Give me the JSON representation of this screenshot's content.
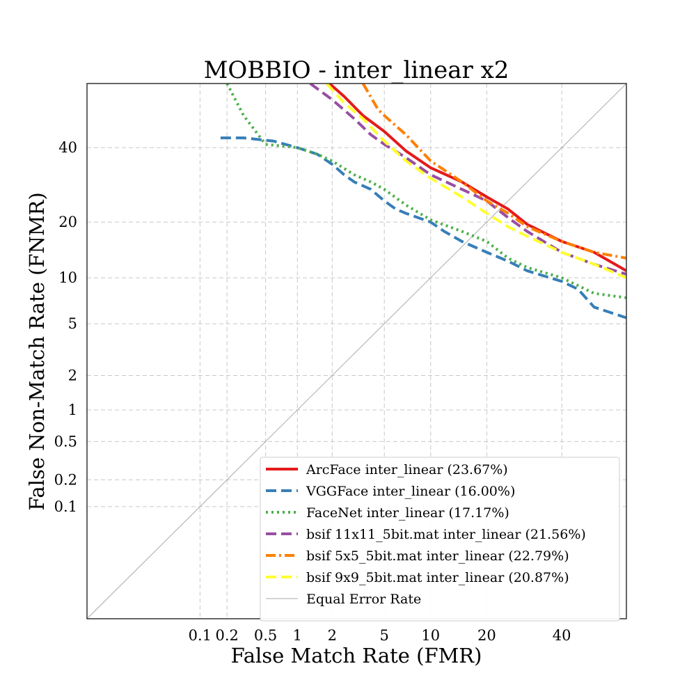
{
  "chart_data": {
    "type": "line",
    "title": "MOBBIO - inter_linear x2",
    "xlabel": "False Match Rate (FMR)",
    "ylabel": "False Non-Match Rate (FNMR)",
    "x_scale": "probit",
    "y_scale": "probit",
    "xlim": [
      0.0035,
      60
    ],
    "ylim": [
      0.0035,
      60
    ],
    "x_ticks": [
      0.1,
      0.2,
      0.5,
      1,
      2,
      5,
      10,
      20,
      40
    ],
    "x_tick_labels": [
      "0.1",
      "0.2",
      "0.5",
      "1",
      "2",
      "5",
      "10",
      "20",
      "40"
    ],
    "y_ticks": [
      0.1,
      0.2,
      0.5,
      1,
      2,
      5,
      10,
      20,
      40
    ],
    "y_tick_labels": [
      "0.1",
      "0.2",
      "0.5",
      "1",
      "2",
      "5",
      "10",
      "20",
      "40"
    ],
    "grid": true,
    "legend_position": "lower-right",
    "series": [
      {
        "name": "ArcFace inter_linear (23.67%)",
        "color": "#e41a1c",
        "style": "solid",
        "x": [
          1.9,
          2.5,
          3.5,
          5,
          7,
          10,
          15,
          20,
          25,
          30,
          40,
          50,
          60
        ],
        "y": [
          60,
          56,
          50,
          45,
          39,
          34,
          30,
          26,
          23,
          19.5,
          16,
          14,
          11
        ]
      },
      {
        "name": "VGGFace inter_linear (16.00%)",
        "color": "#377eb8",
        "style": "dashed",
        "x": [
          0.17,
          0.3,
          0.6,
          1,
          1.5,
          2,
          2.5,
          3,
          4,
          5,
          6,
          7,
          10,
          12,
          15,
          20,
          25,
          30,
          40,
          45,
          50,
          60
        ],
        "y": [
          43,
          43,
          42,
          40,
          38,
          35,
          32,
          30,
          28,
          25,
          23,
          22,
          20,
          18,
          16,
          14,
          12.5,
          11,
          9.5,
          8.5,
          6.5,
          5.5
        ]
      },
      {
        "name": "FaceNet inter_linear (17.17%)",
        "color": "#4daf4a",
        "style": "dotted",
        "x": [
          0.2,
          0.3,
          0.5,
          1,
          1.5,
          2,
          3,
          4,
          5,
          7,
          10,
          15,
          20,
          25,
          30,
          40,
          50,
          60
        ],
        "y": [
          60,
          50,
          41,
          40,
          38,
          36,
          32,
          30,
          28,
          24,
          20.5,
          18,
          16,
          13,
          11.5,
          10,
          8,
          7.5
        ]
      },
      {
        "name": "bsif 11x11_5bit.mat inter_linear (21.56%)",
        "color": "#984ea3",
        "style": "dashed",
        "x": [
          1.3,
          2,
          3,
          4,
          5,
          7,
          10,
          15,
          20,
          25,
          30,
          40,
          50,
          60
        ],
        "y": [
          60,
          55,
          49,
          44,
          41,
          37,
          32,
          28,
          25,
          21,
          18,
          14,
          12,
          10.5
        ]
      },
      {
        "name": "bsif 5x5_5bit.mat inter_linear (22.79%)",
        "color": "#ff7f00",
        "style": "dashdot",
        "x": [
          3.5,
          4.5,
          5,
          7,
          10,
          15,
          20,
          25,
          30,
          40,
          50,
          60
        ],
        "y": [
          60,
          52,
          50,
          44,
          36,
          30,
          25,
          22,
          19,
          16,
          14,
          13
        ]
      },
      {
        "name": "bsif 9x9_5bit.mat inter_linear (20.87%)",
        "color": "#ffff33",
        "style": "dashed",
        "x": [
          1.8,
          2.5,
          3.5,
          5,
          7,
          10,
          15,
          20,
          25,
          30,
          40,
          50,
          60
        ],
        "y": [
          60,
          54,
          49,
          42,
          36,
          31,
          26,
          22,
          19,
          17,
          14,
          12,
          10
        ]
      },
      {
        "name": "Equal Error Rate",
        "color": "#aaaaaa",
        "style": "thin",
        "x": [
          0.0035,
          60
        ],
        "y": [
          0.0035,
          60
        ]
      }
    ]
  }
}
